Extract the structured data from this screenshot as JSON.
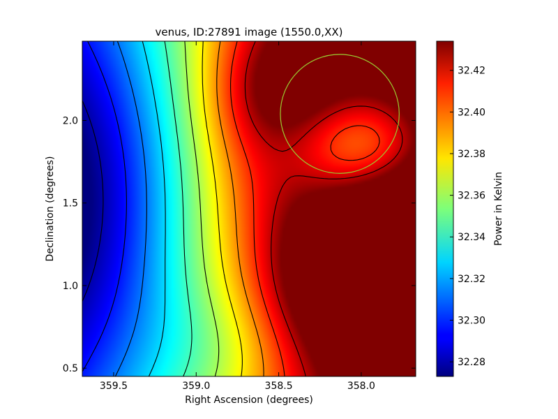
{
  "chart_data": {
    "type": "heatmap",
    "title": "venus, ID:27891 image (1550.0,XX)",
    "xlabel": "Right Ascension (degrees)",
    "ylabel": "Declination (degrees)",
    "colorbar_label": "Power in Kelvin",
    "colormap": "jet",
    "xlim": [
      359.69,
      357.67
    ],
    "ylim": [
      0.45,
      2.48
    ],
    "x_ticks": [
      359.5,
      359.0,
      358.5,
      358.0
    ],
    "x_tick_labels": [
      "359.5",
      "359.0",
      "358.5",
      "358.0"
    ],
    "y_ticks": [
      0.5,
      1.0,
      1.5,
      2.0
    ],
    "y_tick_labels": [
      "0.5",
      "1.0",
      "1.5",
      "2.0"
    ],
    "clim": [
      32.273,
      32.434
    ],
    "colorbar_ticks": [
      32.28,
      32.3,
      32.32,
      32.34,
      32.36,
      32.38,
      32.4,
      32.42
    ],
    "colorbar_tick_labels": [
      "32.28",
      "32.30",
      "32.32",
      "32.34",
      "32.36",
      "32.38",
      "32.40",
      "32.42"
    ],
    "contour_color": "#000000",
    "field": {
      "baseline": 32.4,
      "gradient_per_degree_ra": -0.07,
      "features": [
        {
          "kind": "min",
          "ra": 359.72,
          "dec": 1.52,
          "amplitude": -0.062,
          "sigma_ra": 0.55,
          "sigma_dec": 0.95
        },
        {
          "kind": "max",
          "ra": 358.48,
          "dec": 2.08,
          "amplitude": 0.052,
          "sigma_ra": 0.3,
          "sigma_dec": 0.38
        },
        {
          "kind": "min",
          "ra": 358.02,
          "dec": 1.86,
          "amplitude": -0.062,
          "sigma_ra": 0.38,
          "sigma_dec": 0.24
        },
        {
          "kind": "max",
          "ra": 357.75,
          "dec": 1.05,
          "amplitude": 0.078,
          "sigma_ra": 0.5,
          "sigma_dec": 0.33
        },
        {
          "kind": "min",
          "ra": 358.8,
          "dec": 0.6,
          "amplitude": -0.02,
          "sigma_ra": 0.35,
          "sigma_dec": 0.35
        }
      ]
    },
    "marker_circle": {
      "ra": 358.13,
      "dec": 2.04,
      "radius_deg": 0.36,
      "color": "#9acd32"
    }
  }
}
